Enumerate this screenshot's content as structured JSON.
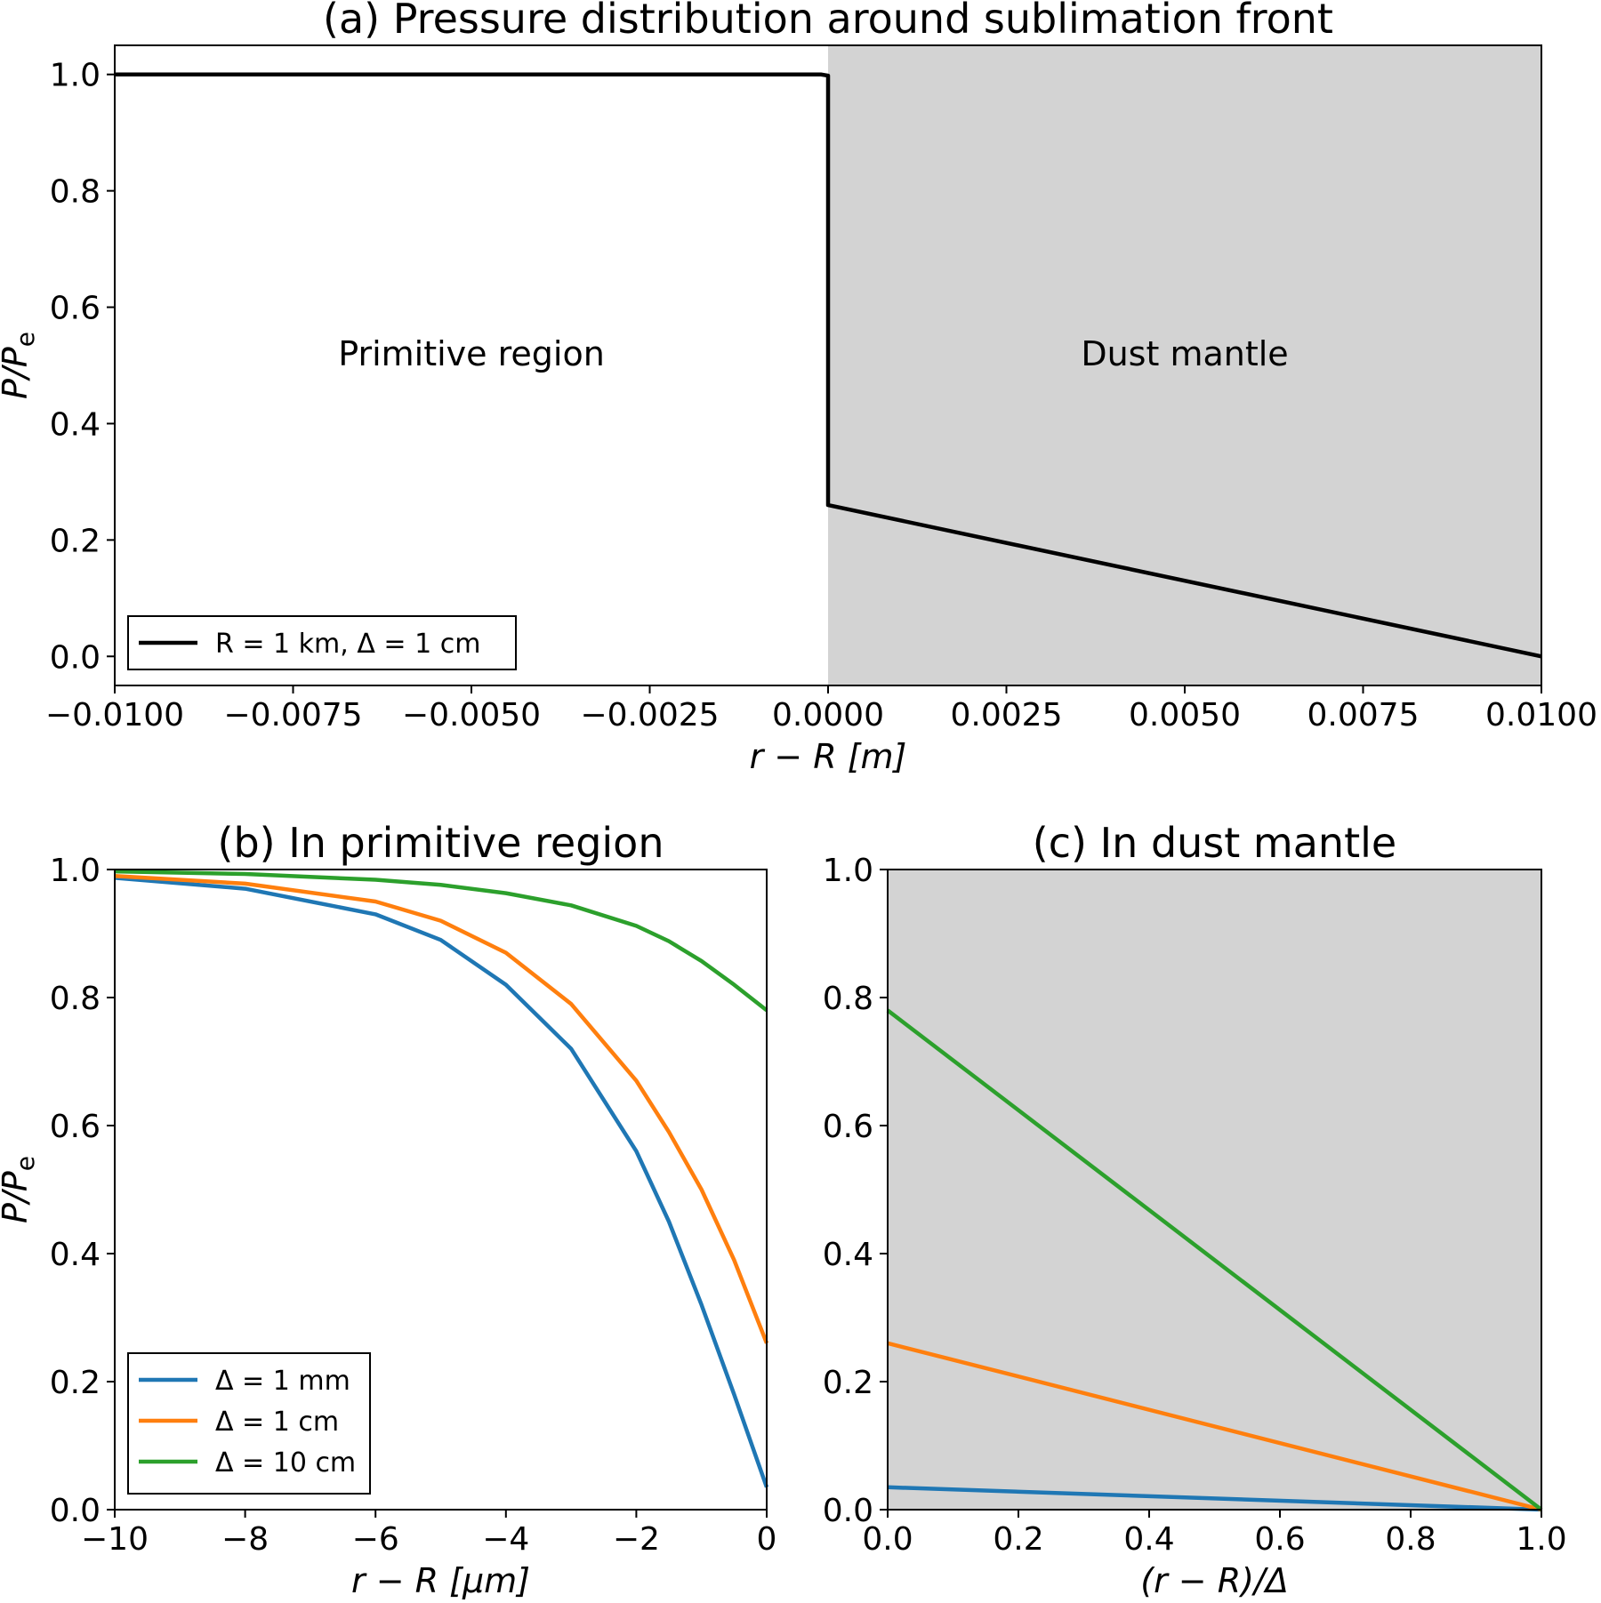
{
  "chart_data": [
    {
      "id": "a",
      "type": "line",
      "title": "(a) Pressure distribution around sublimation front",
      "xlabel": "r − R [m]",
      "ylabel": "P/P",
      "ylabel_sub": "e",
      "xlim": [
        -0.01,
        0.01
      ],
      "ylim": [
        -0.05,
        1.05
      ],
      "xticks": [
        -0.01,
        -0.0075,
        -0.005,
        -0.0025,
        0.0,
        0.0025,
        0.005,
        0.0075,
        0.01
      ],
      "xtick_labels": [
        "−0.0100",
        "−0.0075",
        "−0.0050",
        "−0.0025",
        "0.0000",
        "0.0025",
        "0.0050",
        "0.0075",
        "0.0100"
      ],
      "yticks": [
        0.0,
        0.2,
        0.4,
        0.6,
        0.8,
        1.0
      ],
      "ytick_labels": [
        "0.0",
        "0.2",
        "0.4",
        "0.6",
        "0.8",
        "1.0"
      ],
      "shaded_region": {
        "x_from": 0.0,
        "x_to": 0.01,
        "color": "#d3d3d3"
      },
      "region_labels": [
        {
          "text": "Primitive region",
          "x": -0.005,
          "y": 0.52
        },
        {
          "text": "Dust mantle",
          "x": 0.005,
          "y": 0.52
        }
      ],
      "legend": {
        "placement": "lower-left"
      },
      "series": [
        {
          "name": "R = 1 km, Δ = 1 cm",
          "color": "#000000",
          "x": [
            -0.01,
            -0.0001,
            0.0,
            0.0,
            0.01
          ],
          "y": [
            1.0,
            1.0,
            0.998,
            0.26,
            0.0
          ]
        }
      ]
    },
    {
      "id": "b",
      "type": "line",
      "title": "(b) In primitive region",
      "xlabel": "r − R [μm]",
      "ylabel": "P/P",
      "ylabel_sub": "e",
      "xlim": [
        -10,
        0
      ],
      "ylim": [
        0,
        1
      ],
      "xticks": [
        -10,
        -8,
        -6,
        -4,
        -2,
        0
      ],
      "xtick_labels": [
        "−10",
        "−8",
        "−6",
        "−4",
        "−2",
        "0"
      ],
      "yticks": [
        0.0,
        0.2,
        0.4,
        0.6,
        0.8,
        1.0
      ],
      "ytick_labels": [
        "0.0",
        "0.2",
        "0.4",
        "0.6",
        "0.8",
        "1.0"
      ],
      "legend": {
        "placement": "lower-left"
      },
      "series": [
        {
          "name": "Δ = 1 mm",
          "color": "#1f77b4",
          "x": [
            -10,
            -8,
            -6,
            -5,
            -4,
            -3,
            -2,
            -1.5,
            -1,
            -0.5,
            0
          ],
          "y": [
            0.987,
            0.97,
            0.93,
            0.89,
            0.82,
            0.72,
            0.56,
            0.45,
            0.32,
            0.18,
            0.035
          ]
        },
        {
          "name": "Δ = 1 cm",
          "color": "#ff7f0e",
          "x": [
            -10,
            -8,
            -6,
            -5,
            -4,
            -3,
            -2,
            -1.5,
            -1,
            -0.5,
            0
          ],
          "y": [
            0.99,
            0.978,
            0.95,
            0.92,
            0.87,
            0.79,
            0.67,
            0.59,
            0.5,
            0.39,
            0.26
          ]
        },
        {
          "name": "Δ = 10 cm",
          "color": "#2ca02c",
          "x": [
            -10,
            -8,
            -6,
            -5,
            -4,
            -3,
            -2,
            -1.5,
            -1,
            -0.5,
            0
          ],
          "y": [
            0.997,
            0.993,
            0.984,
            0.976,
            0.963,
            0.944,
            0.912,
            0.888,
            0.857,
            0.82,
            0.78
          ]
        }
      ]
    },
    {
      "id": "c",
      "type": "line",
      "title": "(c) In dust mantle",
      "xlabel": "(r − R)/Δ",
      "xlim": [
        0,
        1
      ],
      "ylim": [
        0,
        1
      ],
      "xticks": [
        0.0,
        0.2,
        0.4,
        0.6,
        0.8,
        1.0
      ],
      "xtick_labels": [
        "0.0",
        "0.2",
        "0.4",
        "0.6",
        "0.8",
        "1.0"
      ],
      "yticks": [
        0.0,
        0.2,
        0.4,
        0.6,
        0.8,
        1.0
      ],
      "ytick_labels": [
        "0.0",
        "0.2",
        "0.4",
        "0.6",
        "0.8",
        "1.0"
      ],
      "background": "#d3d3d3",
      "series": [
        {
          "name": "Δ = 1 mm",
          "color": "#1f77b4",
          "x": [
            0,
            1
          ],
          "y": [
            0.035,
            0.0
          ]
        },
        {
          "name": "Δ = 1 cm",
          "color": "#ff7f0e",
          "x": [
            0,
            1
          ],
          "y": [
            0.26,
            0.0
          ]
        },
        {
          "name": "Δ = 10 cm",
          "color": "#2ca02c",
          "x": [
            0,
            1
          ],
          "y": [
            0.78,
            0.0
          ]
        }
      ]
    }
  ]
}
